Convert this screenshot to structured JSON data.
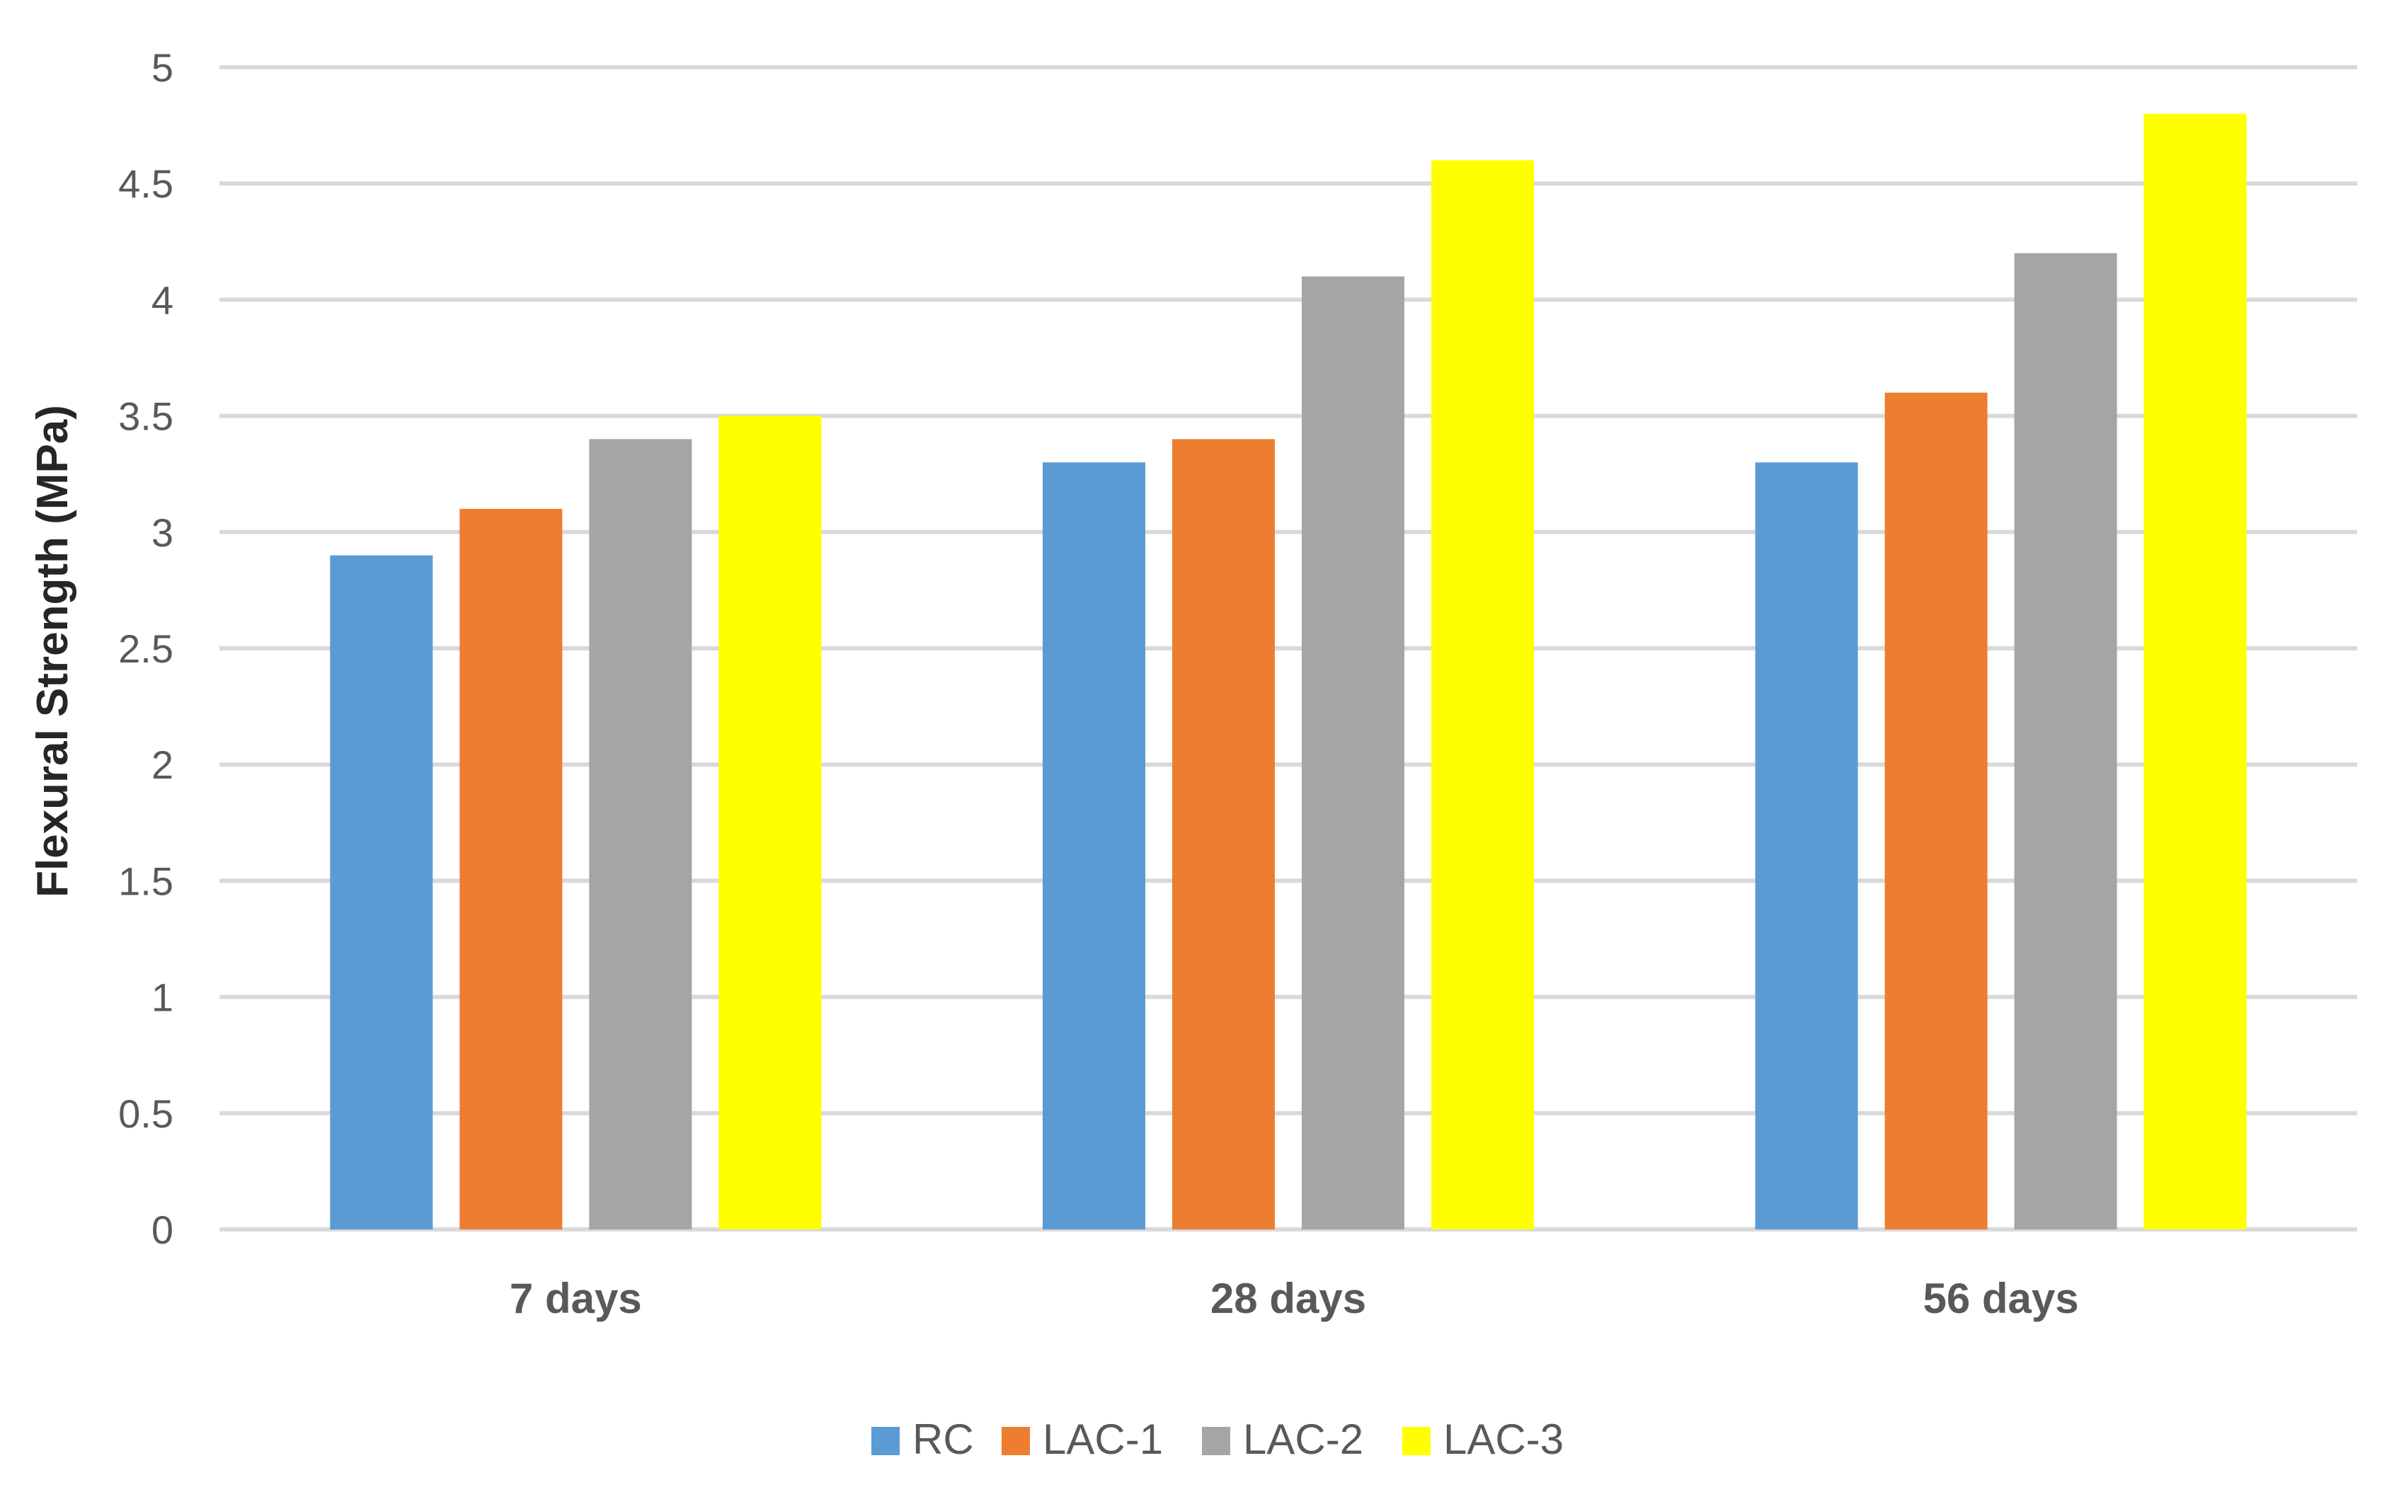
{
  "chart_data": {
    "type": "bar",
    "title": "",
    "xlabel": "",
    "ylabel": "Flexural Strength (MPa)",
    "ylim": [
      0,
      5
    ],
    "ytick_step": 0.5,
    "yticks": [
      "0",
      "0.5",
      "1",
      "1.5",
      "2",
      "2.5",
      "3",
      "3.5",
      "4",
      "4.5",
      "5"
    ],
    "grid": true,
    "legend_position": "bottom",
    "categories": [
      "7 days",
      "28 days",
      "56 days"
    ],
    "series": [
      {
        "name": "RC",
        "color": "#5b9bd5",
        "values": [
          2.9,
          3.3,
          3.3
        ]
      },
      {
        "name": "LAC-1",
        "color": "#ed7d31",
        "values": [
          3.1,
          3.4,
          3.6
        ]
      },
      {
        "name": "LAC-2",
        "color": "#a5a5a5",
        "values": [
          3.4,
          4.1,
          4.2
        ]
      },
      {
        "name": "LAC-3",
        "color": "#ffff00",
        "values": [
          3.5,
          4.6,
          4.8
        ]
      }
    ]
  }
}
